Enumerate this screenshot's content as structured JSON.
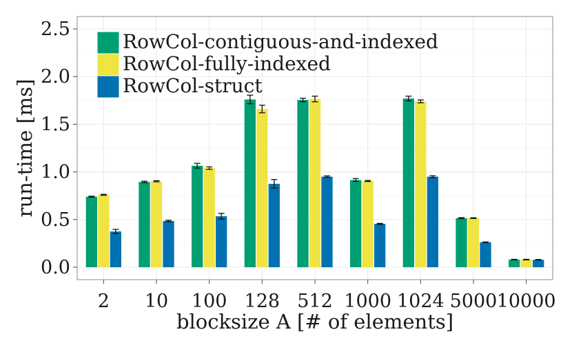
{
  "chart_data": {
    "type": "bar",
    "title": "",
    "xlabel": "blocksize A [# of elements]",
    "ylabel": "run-time [ms]",
    "ylim": [
      -0.13,
      2.63
    ],
    "yticks": [
      0.0,
      0.5,
      1.0,
      1.5,
      2.0,
      2.5
    ],
    "ytick_labels": [
      "0.0",
      "0.5",
      "1.0",
      "1.5",
      "2.0",
      "2.5"
    ],
    "categories": [
      "2",
      "10",
      "100",
      "128",
      "512",
      "1000",
      "1024",
      "5000",
      "10000"
    ],
    "grid": true,
    "legend_position": "top-left",
    "series": [
      {
        "name": "RowCol-contiguous-and-indexed",
        "color": "#009e73",
        "values": [
          0.74,
          0.895,
          1.065,
          1.76,
          1.755,
          0.915,
          1.77,
          0.515,
          0.08
        ],
        "errors": [
          0.005,
          0.008,
          0.025,
          0.045,
          0.018,
          0.015,
          0.025,
          0.005,
          0.003
        ]
      },
      {
        "name": "RowCol-fully-indexed",
        "color": "#f0e442",
        "values": [
          0.76,
          0.902,
          1.04,
          1.66,
          1.765,
          0.905,
          1.74,
          0.515,
          0.08
        ],
        "errors": [
          0.005,
          0.006,
          0.013,
          0.04,
          0.03,
          0.006,
          0.015,
          0.004,
          0.003
        ]
      },
      {
        "name": "RowCol-struct",
        "color": "#0072b2",
        "values": [
          0.375,
          0.485,
          0.535,
          0.875,
          0.95,
          0.455,
          0.95,
          0.262,
          0.078
        ],
        "errors": [
          0.022,
          0.008,
          0.03,
          0.045,
          0.008,
          0.005,
          0.01,
          0.003,
          0.003
        ]
      }
    ]
  }
}
